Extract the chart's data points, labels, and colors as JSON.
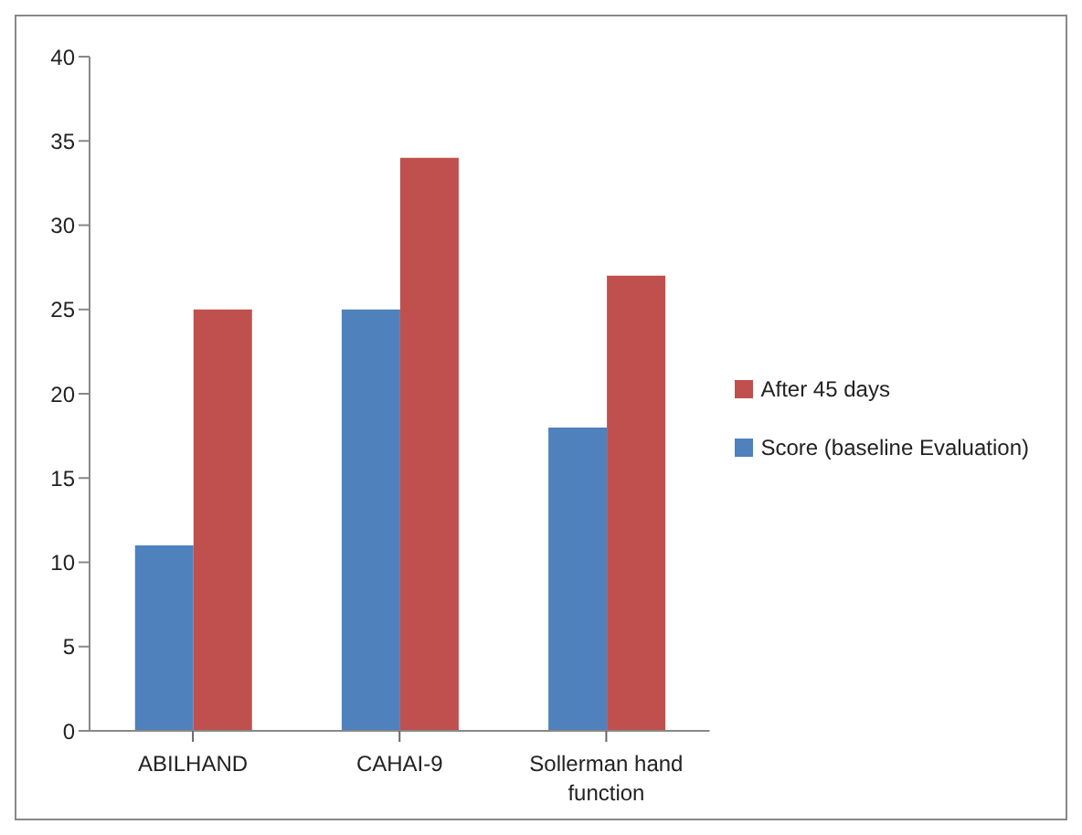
{
  "chart_data": {
    "type": "bar",
    "categories": [
      "ABILHAND",
      "CAHAI-9",
      "Sollerman hand function"
    ],
    "series": [
      {
        "name": "Score (baseline Evaluation)",
        "color": "#4f81bd",
        "values": [
          11,
          25,
          18
        ]
      },
      {
        "name": "After 45 days",
        "color": "#c0504d",
        "values": [
          25,
          34,
          27
        ]
      }
    ],
    "ylim": [
      0,
      40
    ],
    "yticks": [
      0,
      5,
      10,
      15,
      20,
      25,
      30,
      35,
      40
    ],
    "grid": false,
    "legend": "right"
  }
}
